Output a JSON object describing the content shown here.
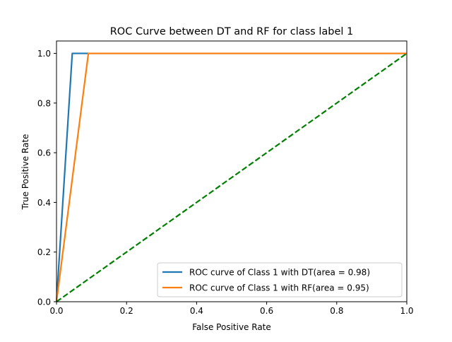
{
  "chart_data": {
    "type": "line",
    "title": "ROC Curve between DT and RF for class label 1",
    "xlabel": "False Positive Rate",
    "ylabel": "True Positive Rate",
    "xlim": [
      0.0,
      1.0
    ],
    "ylim": [
      0.0,
      1.05
    ],
    "xticks": [
      0.0,
      0.2,
      0.4,
      0.6,
      0.8,
      1.0
    ],
    "xtick_labels": [
      "0.0",
      "0.2",
      "0.4",
      "0.6",
      "0.8",
      "1.0"
    ],
    "yticks": [
      0.0,
      0.2,
      0.4,
      0.6,
      0.8,
      1.0
    ],
    "ytick_labels": [
      "0.0",
      "0.2",
      "0.4",
      "0.6",
      "0.8",
      "1.0"
    ],
    "grid": false,
    "legend_position": "lower-right",
    "series": [
      {
        "name": "ROC curve of Class 1 with DT(area = 0.98)",
        "color": "#1f77b4",
        "style": "solid",
        "x": [
          0.0,
          0.045,
          1.0
        ],
        "y": [
          0.0,
          1.0,
          1.0
        ]
      },
      {
        "name": "ROC curve of Class 1 with RF(area = 0.95)",
        "color": "#ff7f0e",
        "style": "solid",
        "x": [
          0.0,
          0.091,
          1.0
        ],
        "y": [
          0.0,
          1.0,
          1.0
        ]
      },
      {
        "color": "#008000",
        "style": "dashed",
        "x": [
          0.0,
          1.0
        ],
        "y": [
          0.0,
          1.0
        ]
      }
    ]
  }
}
